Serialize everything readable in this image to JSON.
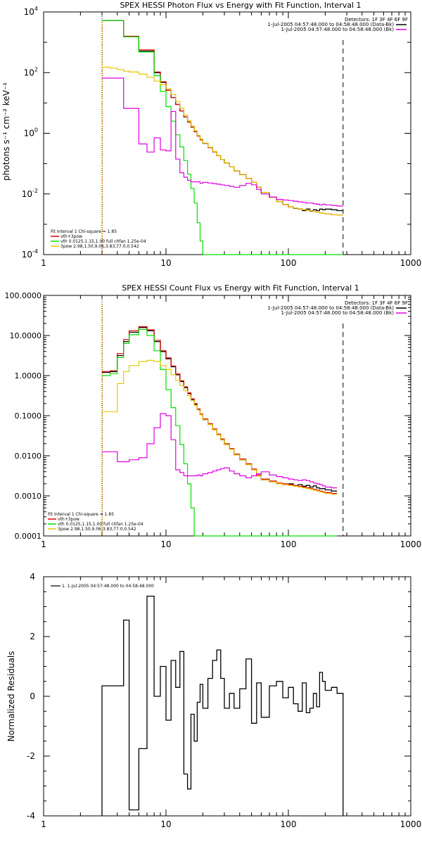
{
  "colors": {
    "black": "#000000",
    "red": "#e00000",
    "green": "#00e000",
    "yellow": "#e6c800",
    "magenta": "#e000e0",
    "orange": "#ff8c00"
  },
  "chart_data": [
    {
      "type": "line",
      "title": "SPEX HESSI Photon Flux vs Energy with Fit Function, Interval 1",
      "xlabel": "",
      "ylabel": "photons s⁻¹ cm⁻² keV⁻¹",
      "xscale": "log",
      "yscale": "log",
      "xlim": [
        1,
        1000
      ],
      "ylim": [
        0.0001,
        10000
      ],
      "xticks": [
        "1",
        "10",
        "100",
        "1000"
      ],
      "yticks_log": [
        -4,
        -2,
        0,
        2,
        4
      ],
      "legend_tr": [
        "Detectors: 1F 3F 4F 6F 9F",
        "1-Jul-2005 04:57:48.000 to 04:58:48.000 (Data-Bk)",
        "1-Jul-2005 04:57:48.000 to 04:58:48.000 (Bk)"
      ],
      "legend_bl": [
        "Fit Interval 1    Chi-square = 1.85",
        "vth+3pow",
        "vth 0.0125,1.15,1.00  full chfan 1.25e-04",
        "3pow 2.98,1.50,9.06,3.83,77.0,0.542"
      ],
      "energy_edges": [
        3,
        3.5,
        4,
        4.5,
        5,
        6,
        7,
        8,
        9,
        10,
        11,
        12,
        13,
        14,
        15,
        16,
        17,
        18,
        19,
        20,
        22,
        24,
        26,
        28,
        30,
        33,
        36,
        40,
        45,
        50,
        55,
        60,
        70,
        80,
        90,
        100,
        110,
        120,
        130,
        140,
        150,
        160,
        170,
        180,
        190,
        200,
        225,
        250,
        280
      ],
      "cutoff_line_x": 280,
      "threshold_line_x": 3,
      "series": [
        {
          "name": "Data-Bk",
          "color": "black",
          "log_values": [
            3.72,
            3.72,
            3.72,
            3.18,
            3.18,
            2.71,
            2.71,
            2.0,
            1.68,
            1.42,
            1.18,
            0.95,
            0.74,
            0.54,
            0.37,
            0.2,
            0.05,
            -0.09,
            -0.21,
            -0.33,
            -0.47,
            -0.61,
            -0.74,
            -0.86,
            -0.98,
            -1.11,
            -1.24,
            -1.36,
            -1.49,
            -1.62,
            -1.78,
            -1.95,
            -2.12,
            -2.25,
            -2.35,
            -2.43,
            -2.48,
            -2.5,
            -2.55,
            -2.5,
            -2.57,
            -2.52,
            -2.55,
            -2.5,
            -2.52,
            -2.5,
            -2.52,
            -2.55
          ]
        },
        {
          "name": "vth+3pow",
          "color": "red",
          "log_values": [
            3.72,
            3.72,
            3.72,
            3.2,
            3.2,
            2.75,
            2.75,
            2.02,
            1.7,
            1.42,
            1.18,
            0.95,
            0.74,
            0.54,
            0.37,
            0.2,
            0.05,
            -0.09,
            -0.21,
            -0.33,
            -0.47,
            -0.61,
            -0.74,
            -0.86,
            -0.98,
            -1.11,
            -1.24,
            -1.36,
            -1.49,
            -1.62,
            -1.78,
            -1.95,
            -2.12,
            -2.25,
            -2.35,
            -2.43,
            -2.47,
            -2.5,
            -2.52,
            -2.54,
            -2.56,
            -2.58,
            -2.6,
            -2.62,
            -2.64,
            -2.66,
            -2.68,
            -2.7
          ]
        },
        {
          "name": "vth",
          "color": "green",
          "log_values": [
            3.72,
            3.72,
            3.72,
            3.18,
            3.18,
            2.68,
            2.68,
            1.9,
            1.38,
            0.88,
            0.4,
            -0.05,
            -0.45,
            -0.9,
            -1.35,
            -1.82,
            -2.3,
            -2.95,
            -3.55,
            -4.2,
            -5,
            -6,
            -7,
            -8,
            -9,
            -10,
            -11,
            -12,
            -13,
            -14,
            -15,
            -16,
            -17,
            -18,
            -19,
            -20,
            -21,
            -22,
            -23,
            -24,
            -25,
            -26,
            -27,
            -28,
            -29,
            -30,
            -31,
            -32
          ]
        },
        {
          "name": "3pow",
          "color": "yellow",
          "log_values": [
            2.18,
            2.15,
            2.1,
            2.05,
            2.02,
            1.95,
            1.85,
            1.72,
            1.6,
            1.47,
            1.28,
            1.05,
            0.83,
            0.6,
            0.42,
            0.24,
            0.08,
            -0.07,
            -0.19,
            -0.32,
            -0.46,
            -0.6,
            -0.73,
            -0.86,
            -0.98,
            -1.11,
            -1.24,
            -1.36,
            -1.49,
            -1.62,
            -1.78,
            -1.95,
            -2.12,
            -2.25,
            -2.35,
            -2.43,
            -2.47,
            -2.5,
            -2.52,
            -2.54,
            -2.56,
            -2.58,
            -2.6,
            -2.62,
            -2.64,
            -2.66,
            -2.68,
            -2.7
          ]
        },
        {
          "name": "Bk",
          "color": "magenta",
          "log_values": [
            1.82,
            1.82,
            1.82,
            0.82,
            0.82,
            -0.35,
            -0.62,
            -0.15,
            -0.55,
            -0.58,
            0.72,
            -0.85,
            -1.3,
            -1.45,
            -1.55,
            -1.6,
            -1.6,
            -1.6,
            -1.65,
            -1.62,
            -1.64,
            -1.66,
            -1.68,
            -1.7,
            -1.72,
            -1.75,
            -1.78,
            -1.72,
            -1.65,
            -1.7,
            -1.85,
            -2.0,
            -2.1,
            -2.18,
            -2.2,
            -2.22,
            -2.24,
            -2.26,
            -2.28,
            -2.3,
            -2.3,
            -2.32,
            -2.34,
            -2.36,
            -2.34,
            -2.36,
            -2.38,
            -2.4
          ]
        }
      ]
    },
    {
      "type": "line",
      "title": "SPEX HESSI Count Flux vs Energy with Fit Function, Interval 1",
      "xlabel": "",
      "ylabel": "",
      "xscale": "log",
      "yscale": "log",
      "xlim": [
        1,
        1000
      ],
      "ylim": [
        0.0001,
        100
      ],
      "xticks": [
        "1",
        "10",
        "100",
        "1000"
      ],
      "ytick_labels": [
        "0.0001",
        "0.0010",
        "0.0100",
        "0.1000",
        "1.0000",
        "10.0000",
        "100.0000"
      ],
      "legend_tr": [
        "Detectors: 1F 3F 4F 6F 9F",
        "1-Jul-2005 04:57:48.000 to 04:58:48.000 (Data-Bk)",
        "1-Jul-2005 04:57:48.000 to 04:58:48.000 (Bk)"
      ],
      "legend_bl": [
        "Fit Interval 1    Chi-square = 1.85",
        "vth+3pow",
        "vth 0.0125,1.15,1.00  full chfan 1.25e-04",
        "3pow 2.98,1.50,9.06,3.83,77.0,0.542"
      ],
      "energy_edges": [
        3,
        3.5,
        4,
        4.5,
        5,
        6,
        7,
        8,
        9,
        10,
        11,
        12,
        13,
        14,
        15,
        16,
        17,
        18,
        19,
        20,
        22,
        24,
        26,
        28,
        30,
        33,
        36,
        40,
        45,
        50,
        55,
        60,
        70,
        80,
        90,
        100,
        110,
        120,
        130,
        140,
        150,
        160,
        170,
        180,
        190,
        200,
        225,
        250,
        280
      ],
      "cutoff_line_x": 280,
      "threshold_line_x": 3,
      "series": [
        {
          "name": "Data-Bk",
          "color": "black",
          "log_values": [
            0.08,
            0.1,
            0.5,
            0.85,
            1.08,
            1.2,
            1.12,
            0.85,
            0.6,
            0.42,
            0.22,
            0.02,
            -0.15,
            -0.3,
            -0.45,
            -0.6,
            -0.72,
            -0.85,
            -0.98,
            -1.1,
            -1.22,
            -1.35,
            -1.48,
            -1.6,
            -1.72,
            -1.84,
            -1.98,
            -2.1,
            -2.22,
            -2.35,
            -2.5,
            -2.6,
            -2.65,
            -2.7,
            -2.72,
            -2.7,
            -2.75,
            -2.72,
            -2.76,
            -2.74,
            -2.78,
            -2.75,
            -2.8,
            -2.82,
            -2.82,
            -2.85,
            -2.88
          ]
        },
        {
          "name": "vth+3pow",
          "color": "red",
          "log_values": [
            0.1,
            0.12,
            0.55,
            0.9,
            1.12,
            1.22,
            1.14,
            0.88,
            0.62,
            0.44,
            0.24,
            0.04,
            -0.13,
            -0.28,
            -0.43,
            -0.58,
            -0.7,
            -0.83,
            -0.96,
            -1.08,
            -1.2,
            -1.33,
            -1.46,
            -1.58,
            -1.7,
            -1.82,
            -1.96,
            -2.08,
            -2.2,
            -2.33,
            -2.48,
            -2.58,
            -2.63,
            -2.68,
            -2.7,
            -2.72,
            -2.74,
            -2.76,
            -2.78,
            -2.8,
            -2.82,
            -2.84,
            -2.86,
            -2.88,
            -2.9,
            -2.92,
            -2.94
          ]
        },
        {
          "name": "vth",
          "color": "green",
          "log_values": [
            0.0,
            0.05,
            0.45,
            0.8,
            1.02,
            1.15,
            1.0,
            0.62,
            0.15,
            -0.35,
            -0.8,
            -1.25,
            -1.72,
            -2.2,
            -2.7,
            -3.3,
            -4,
            -5,
            -6,
            -7,
            -8,
            -9,
            -10,
            -11,
            -12,
            -13,
            -14,
            -15,
            -16,
            -17,
            -18,
            -19,
            -20,
            -21,
            -22,
            -23,
            -24,
            -25,
            -26,
            -27,
            -28,
            -29,
            -30,
            -31,
            -32,
            -33,
            -34
          ]
        },
        {
          "name": "3pow",
          "color": "yellow",
          "log_values": [
            -0.9,
            -0.9,
            -0.2,
            0.1,
            0.25,
            0.35,
            0.38,
            0.35,
            0.25,
            0.15,
            0.02,
            -0.12,
            -0.25,
            -0.38,
            -0.5,
            -0.62,
            -0.74,
            -0.86,
            -0.98,
            -1.1,
            -1.22,
            -1.35,
            -1.48,
            -1.6,
            -1.72,
            -1.84,
            -1.98,
            -2.1,
            -2.22,
            -2.35,
            -2.5,
            -2.6,
            -2.65,
            -2.7,
            -2.72,
            -2.74,
            -2.76,
            -2.78,
            -2.8,
            -2.82,
            -2.84,
            -2.86,
            -2.88,
            -2.9,
            -2.92,
            -2.94,
            -2.96
          ]
        },
        {
          "name": "Bk",
          "color": "magenta",
          "log_values": [
            -1.9,
            -1.9,
            -2.15,
            -2.15,
            -2.1,
            -2.05,
            -1.7,
            -1.3,
            -0.95,
            -1.0,
            -1.6,
            -2.35,
            -2.42,
            -2.5,
            -2.5,
            -2.5,
            -2.5,
            -2.48,
            -2.5,
            -2.45,
            -2.42,
            -2.38,
            -2.35,
            -2.32,
            -2.3,
            -2.38,
            -2.45,
            -2.5,
            -2.55,
            -2.5,
            -2.45,
            -2.4,
            -2.48,
            -2.52,
            -2.55,
            -2.58,
            -2.6,
            -2.62,
            -2.6,
            -2.62,
            -2.65,
            -2.68,
            -2.7,
            -2.72,
            -2.75,
            -2.78,
            -2.8
          ]
        }
      ]
    },
    {
      "type": "line",
      "title": "",
      "xlabel": "",
      "ylabel": "Normalized Residuals",
      "xscale": "log",
      "yscale": "linear",
      "xlim": [
        1,
        1000
      ],
      "ylim": [
        -4,
        4
      ],
      "xticks": [
        "1",
        "10",
        "100",
        "1000"
      ],
      "yticks": [
        -4,
        -2,
        0,
        2,
        4
      ],
      "legend_tl": [
        "1.  1-Jul-2005 04:57:48.000 to 04:58:48.000"
      ],
      "energy_edges": [
        3,
        3.5,
        4,
        4.5,
        5,
        6,
        7,
        8,
        9,
        10,
        11,
        12,
        13,
        14,
        15,
        16,
        17,
        18,
        19,
        20,
        22,
        24,
        26,
        28,
        30,
        33,
        36,
        40,
        45,
        50,
        55,
        60,
        70,
        80,
        90,
        100,
        110,
        120,
        130,
        140,
        150,
        160,
        170,
        180,
        190,
        200,
        225,
        250,
        280
      ],
      "series": [
        {
          "name": "1.  1-Jul-2005 04:57:48.000 to 04:58:48.000",
          "color": "black",
          "values": [
            0.35,
            0.35,
            0.35,
            2.55,
            -3.8,
            -1.75,
            3.35,
            0.0,
            1.0,
            -0.8,
            1.2,
            0.3,
            1.5,
            -2.6,
            -3.1,
            -0.6,
            -1.5,
            -0.2,
            0.4,
            -0.4,
            0.6,
            1.2,
            1.55,
            0.6,
            -0.4,
            0.1,
            -0.4,
            0.25,
            1.25,
            -0.9,
            0.45,
            -0.7,
            0.35,
            0.5,
            -0.05,
            0.3,
            -0.25,
            -0.5,
            0.45,
            -0.55,
            -0.4,
            0.1,
            -0.35,
            0.8,
            0.5,
            0.2,
            0.3,
            0.1
          ]
        }
      ]
    }
  ]
}
